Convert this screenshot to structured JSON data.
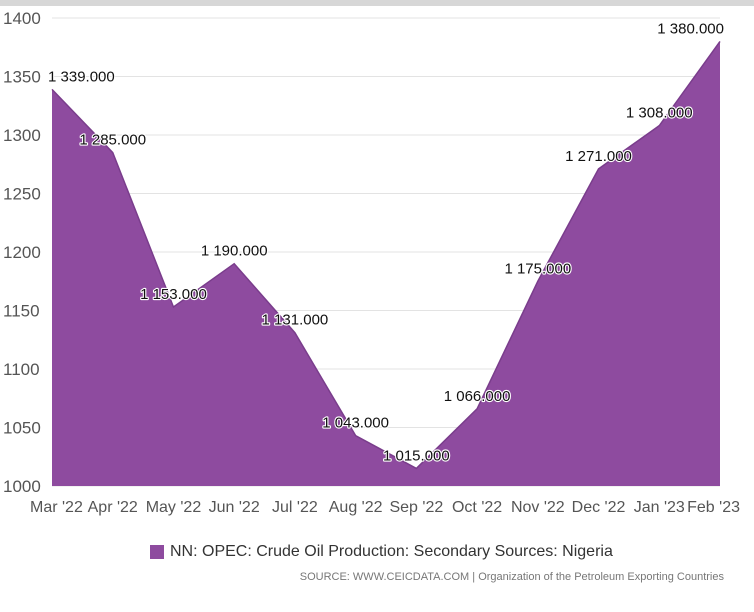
{
  "chart_data": {
    "type": "area",
    "categories": [
      "Mar '22",
      "Apr '22",
      "May '22",
      "Jun '22",
      "Jul '22",
      "Aug '22",
      "Sep '22",
      "Oct '22",
      "Nov '22",
      "Dec '22",
      "Jan '23",
      "Feb '23"
    ],
    "series": [
      {
        "name": "NN: OPEC: Crude Oil Production: Secondary Sources: Nigeria",
        "values": [
          1339,
          1285,
          1153,
          1190,
          1131,
          1043,
          1015,
          1066,
          1175,
          1271,
          1308,
          1380
        ],
        "labels": [
          "1 339.000",
          "1 285.000",
          "1 153.000",
          "1 190.000",
          "1 131.000",
          "1 043.000",
          "1 015.000",
          "1 066.000",
          "1 175.000",
          "1 271.000",
          "1 308.000",
          "1 380.000"
        ]
      }
    ],
    "ylim": [
      1000,
      1400
    ],
    "yticks": [
      "1000",
      "1050",
      "1100",
      "1150",
      "1200",
      "1250",
      "1300",
      "1350",
      "1400"
    ],
    "grid": true,
    "legend_position": "bottom"
  },
  "legend": {
    "label": "NN: OPEC: Crude Oil Production: Secondary Sources: Nigeria"
  },
  "source": "SOURCE: WWW.CEICDATA.COM | Organization of the Petroleum Exporting Countries",
  "colors": {
    "area": "#8e4b9f",
    "grid": "#e3e3e3"
  }
}
